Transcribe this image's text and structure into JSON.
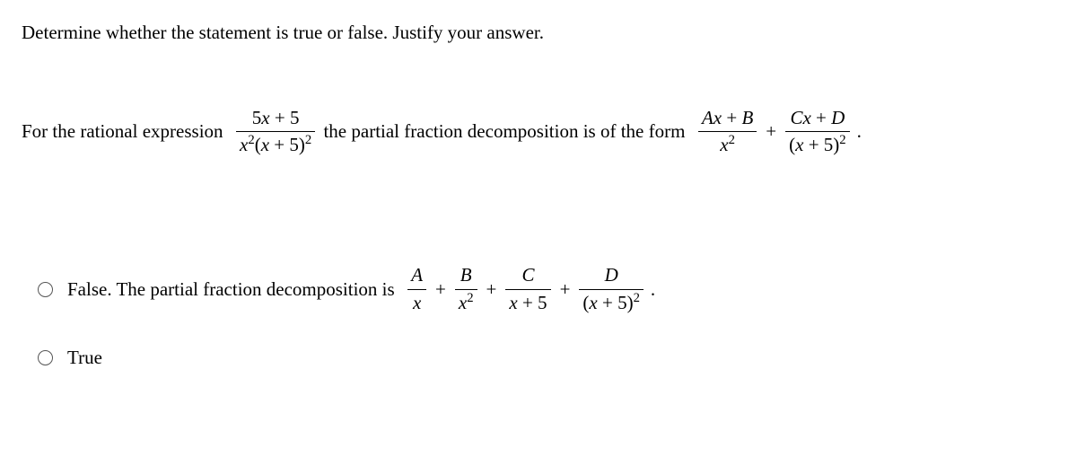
{
  "question": "Determine whether the statement is true or false. Justify your answer.",
  "statement": {
    "lead": "For the rational expression",
    "frac1_num_a": "5",
    "frac1_num_b": " + 5",
    "frac1_den_x": "x",
    "frac1_den_mid": "(",
    "frac1_den_end": " + 5)",
    "mid": "the partial fraction decomposition is of the form",
    "r1_num_a": "Ax",
    "r1_num_b": " + ",
    "r1_num_c": "B",
    "r1_den": "x",
    "plus": "+",
    "r2_num_a": "Cx",
    "r2_num_b": " + ",
    "r2_num_c": "D",
    "r2_den_a": "(",
    "r2_den_b": "x",
    "r2_den_c": " + 5)",
    "period": "."
  },
  "options": {
    "opt1": {
      "lead": "False. The partial fraction decomposition is",
      "t1n": "A",
      "t1d": "x",
      "plus": "+",
      "t2n": "B",
      "t2d": "x",
      "t3n": "C",
      "t3d_a": "x",
      "t3d_b": " + 5",
      "t4n": "D",
      "t4d_a": "(",
      "t4d_b": "x",
      "t4d_c": " + 5)",
      "period": "."
    },
    "opt2": {
      "label": "True"
    }
  },
  "exp2": "2"
}
